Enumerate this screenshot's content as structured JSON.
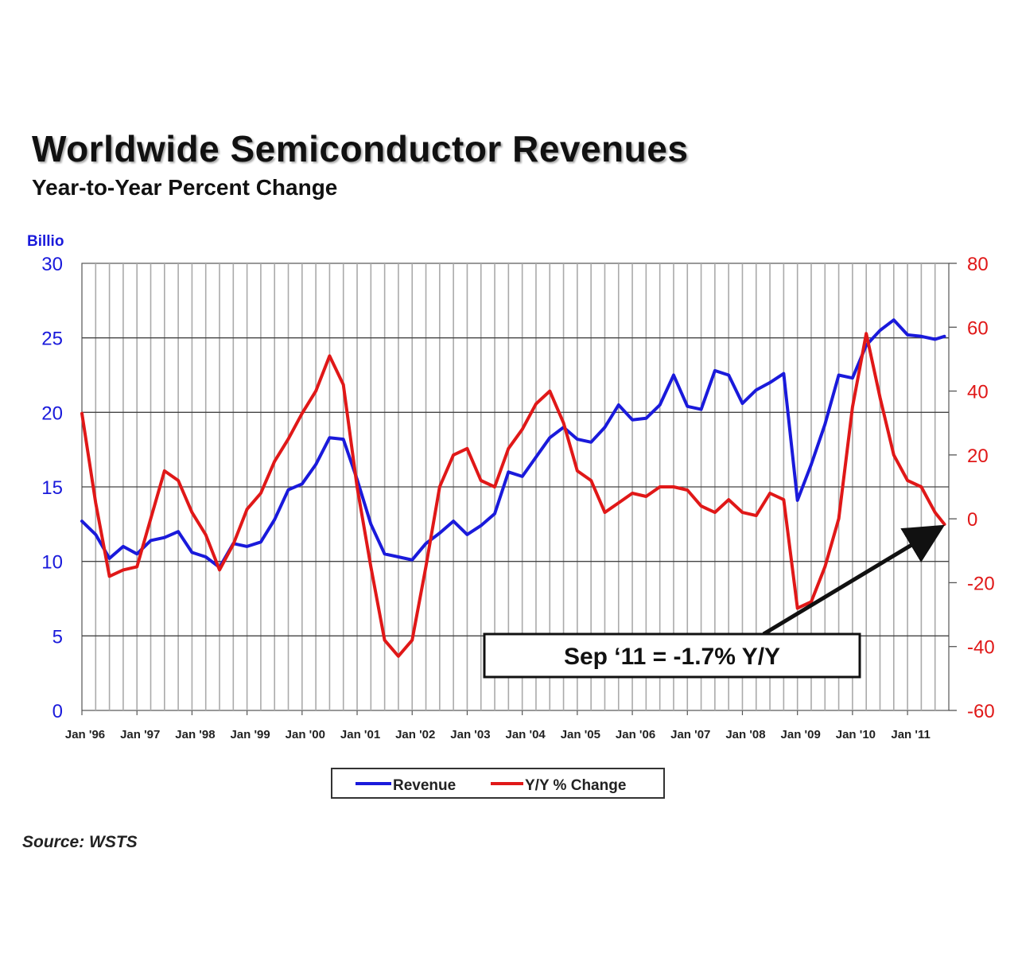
{
  "chart_data": {
    "type": "line",
    "title": "Worldwide Semiconductor Revenues",
    "subtitle": "Year-to-Year Percent Change",
    "y_left_label": "Billio",
    "y_left_range": [
      0,
      30
    ],
    "y_left_ticks": [
      "0",
      "5",
      "10",
      "15",
      "20",
      "25",
      "30"
    ],
    "y_right_range": [
      -60,
      80
    ],
    "y_right_ticks": [
      "-60",
      "-40",
      "-20",
      "0",
      "20",
      "40",
      "60",
      "80"
    ],
    "x_tick_labels": [
      "Jan '96",
      "Jan '97",
      "Jan '98",
      "Jan '99",
      "Jan '00",
      "Jan '01",
      "Jan '02",
      "Jan '03",
      "Jan '04",
      "Jan '05",
      "Jan '06",
      "Jan '07",
      "Jan '08",
      "Jan '09",
      "Jan '10",
      "Jan '11"
    ],
    "x_range": [
      1996.0,
      2011.75
    ],
    "grid": true,
    "legend_position": "bottom",
    "colors": {
      "revenue": "#1a1adb",
      "yoy": "#e01818",
      "left_axis": "#1a1adb",
      "right_axis": "#e01818"
    },
    "series": [
      {
        "name": "Revenue",
        "axis": "left",
        "points": [
          [
            1996.0,
            12.7
          ],
          [
            1996.25,
            11.8
          ],
          [
            1996.5,
            10.2
          ],
          [
            1996.75,
            11.0
          ],
          [
            1997.0,
            10.5
          ],
          [
            1997.25,
            11.4
          ],
          [
            1997.5,
            11.6
          ],
          [
            1997.75,
            12.0
          ],
          [
            1998.0,
            10.6
          ],
          [
            1998.25,
            10.3
          ],
          [
            1998.5,
            9.6
          ],
          [
            1998.75,
            11.2
          ],
          [
            1999.0,
            11.0
          ],
          [
            1999.25,
            11.3
          ],
          [
            1999.5,
            12.8
          ],
          [
            1999.75,
            14.8
          ],
          [
            2000.0,
            15.2
          ],
          [
            2000.25,
            16.5
          ],
          [
            2000.5,
            18.3
          ],
          [
            2000.75,
            18.2
          ],
          [
            2001.0,
            15.5
          ],
          [
            2001.25,
            12.5
          ],
          [
            2001.5,
            10.5
          ],
          [
            2001.75,
            10.3
          ],
          [
            2002.0,
            10.1
          ],
          [
            2002.25,
            11.2
          ],
          [
            2002.5,
            11.9
          ],
          [
            2002.75,
            12.7
          ],
          [
            2003.0,
            11.8
          ],
          [
            2003.25,
            12.4
          ],
          [
            2003.5,
            13.2
          ],
          [
            2003.75,
            16.0
          ],
          [
            2004.0,
            15.7
          ],
          [
            2004.25,
            17.0
          ],
          [
            2004.5,
            18.3
          ],
          [
            2004.75,
            19.0
          ],
          [
            2005.0,
            18.2
          ],
          [
            2005.25,
            18.0
          ],
          [
            2005.5,
            19.0
          ],
          [
            2005.75,
            20.5
          ],
          [
            2006.0,
            19.5
          ],
          [
            2006.25,
            19.6
          ],
          [
            2006.5,
            20.5
          ],
          [
            2006.75,
            22.5
          ],
          [
            2007.0,
            20.4
          ],
          [
            2007.25,
            20.2
          ],
          [
            2007.5,
            22.8
          ],
          [
            2007.75,
            22.5
          ],
          [
            2008.0,
            20.6
          ],
          [
            2008.25,
            21.5
          ],
          [
            2008.5,
            22.0
          ],
          [
            2008.75,
            22.6
          ],
          [
            2009.0,
            14.1
          ],
          [
            2009.25,
            16.5
          ],
          [
            2009.5,
            19.2
          ],
          [
            2009.75,
            22.5
          ],
          [
            2010.0,
            22.3
          ],
          [
            2010.25,
            24.5
          ],
          [
            2010.5,
            25.5
          ],
          [
            2010.75,
            26.2
          ],
          [
            2011.0,
            25.2
          ],
          [
            2011.25,
            25.1
          ],
          [
            2011.5,
            24.9
          ],
          [
            2011.67,
            25.1
          ]
        ]
      },
      {
        "name": "Y/Y % Change",
        "axis": "right",
        "points": [
          [
            1996.0,
            33
          ],
          [
            1996.25,
            5
          ],
          [
            1996.5,
            -18
          ],
          [
            1996.75,
            -16
          ],
          [
            1997.0,
            -15
          ],
          [
            1997.25,
            0
          ],
          [
            1997.5,
            15
          ],
          [
            1997.75,
            12
          ],
          [
            1998.0,
            2
          ],
          [
            1998.25,
            -5
          ],
          [
            1998.5,
            -16
          ],
          [
            1998.75,
            -8
          ],
          [
            1999.0,
            3
          ],
          [
            1999.25,
            8
          ],
          [
            1999.5,
            18
          ],
          [
            1999.75,
            25
          ],
          [
            2000.0,
            33
          ],
          [
            2000.25,
            40
          ],
          [
            2000.5,
            51
          ],
          [
            2000.75,
            42
          ],
          [
            2001.0,
            10
          ],
          [
            2001.25,
            -15
          ],
          [
            2001.5,
            -38
          ],
          [
            2001.75,
            -43
          ],
          [
            2002.0,
            -38
          ],
          [
            2002.25,
            -15
          ],
          [
            2002.5,
            10
          ],
          [
            2002.75,
            20
          ],
          [
            2003.0,
            22
          ],
          [
            2003.25,
            12
          ],
          [
            2003.5,
            10
          ],
          [
            2003.75,
            22
          ],
          [
            2004.0,
            28
          ],
          [
            2004.25,
            36
          ],
          [
            2004.5,
            40
          ],
          [
            2004.75,
            30
          ],
          [
            2005.0,
            15
          ],
          [
            2005.25,
            12
          ],
          [
            2005.5,
            2
          ],
          [
            2005.75,
            5
          ],
          [
            2006.0,
            8
          ],
          [
            2006.25,
            7
          ],
          [
            2006.5,
            10
          ],
          [
            2006.75,
            10
          ],
          [
            2007.0,
            9
          ],
          [
            2007.25,
            4
          ],
          [
            2007.5,
            2
          ],
          [
            2007.75,
            6
          ],
          [
            2008.0,
            2
          ],
          [
            2008.25,
            1
          ],
          [
            2008.5,
            8
          ],
          [
            2008.75,
            6
          ],
          [
            2009.0,
            -28
          ],
          [
            2009.25,
            -26
          ],
          [
            2009.5,
            -15
          ],
          [
            2009.75,
            0
          ],
          [
            2010.0,
            35
          ],
          [
            2010.25,
            58
          ],
          [
            2010.5,
            38
          ],
          [
            2010.75,
            20
          ],
          [
            2011.0,
            12
          ],
          [
            2011.25,
            10
          ],
          [
            2011.5,
            2
          ],
          [
            2011.67,
            -1.7
          ]
        ]
      }
    ],
    "annotation": {
      "text": "Sep ‘11 = -1.7% Y/Y",
      "points_to": [
        2011.67,
        -1.7
      ]
    },
    "source": "Source: WSTS"
  }
}
